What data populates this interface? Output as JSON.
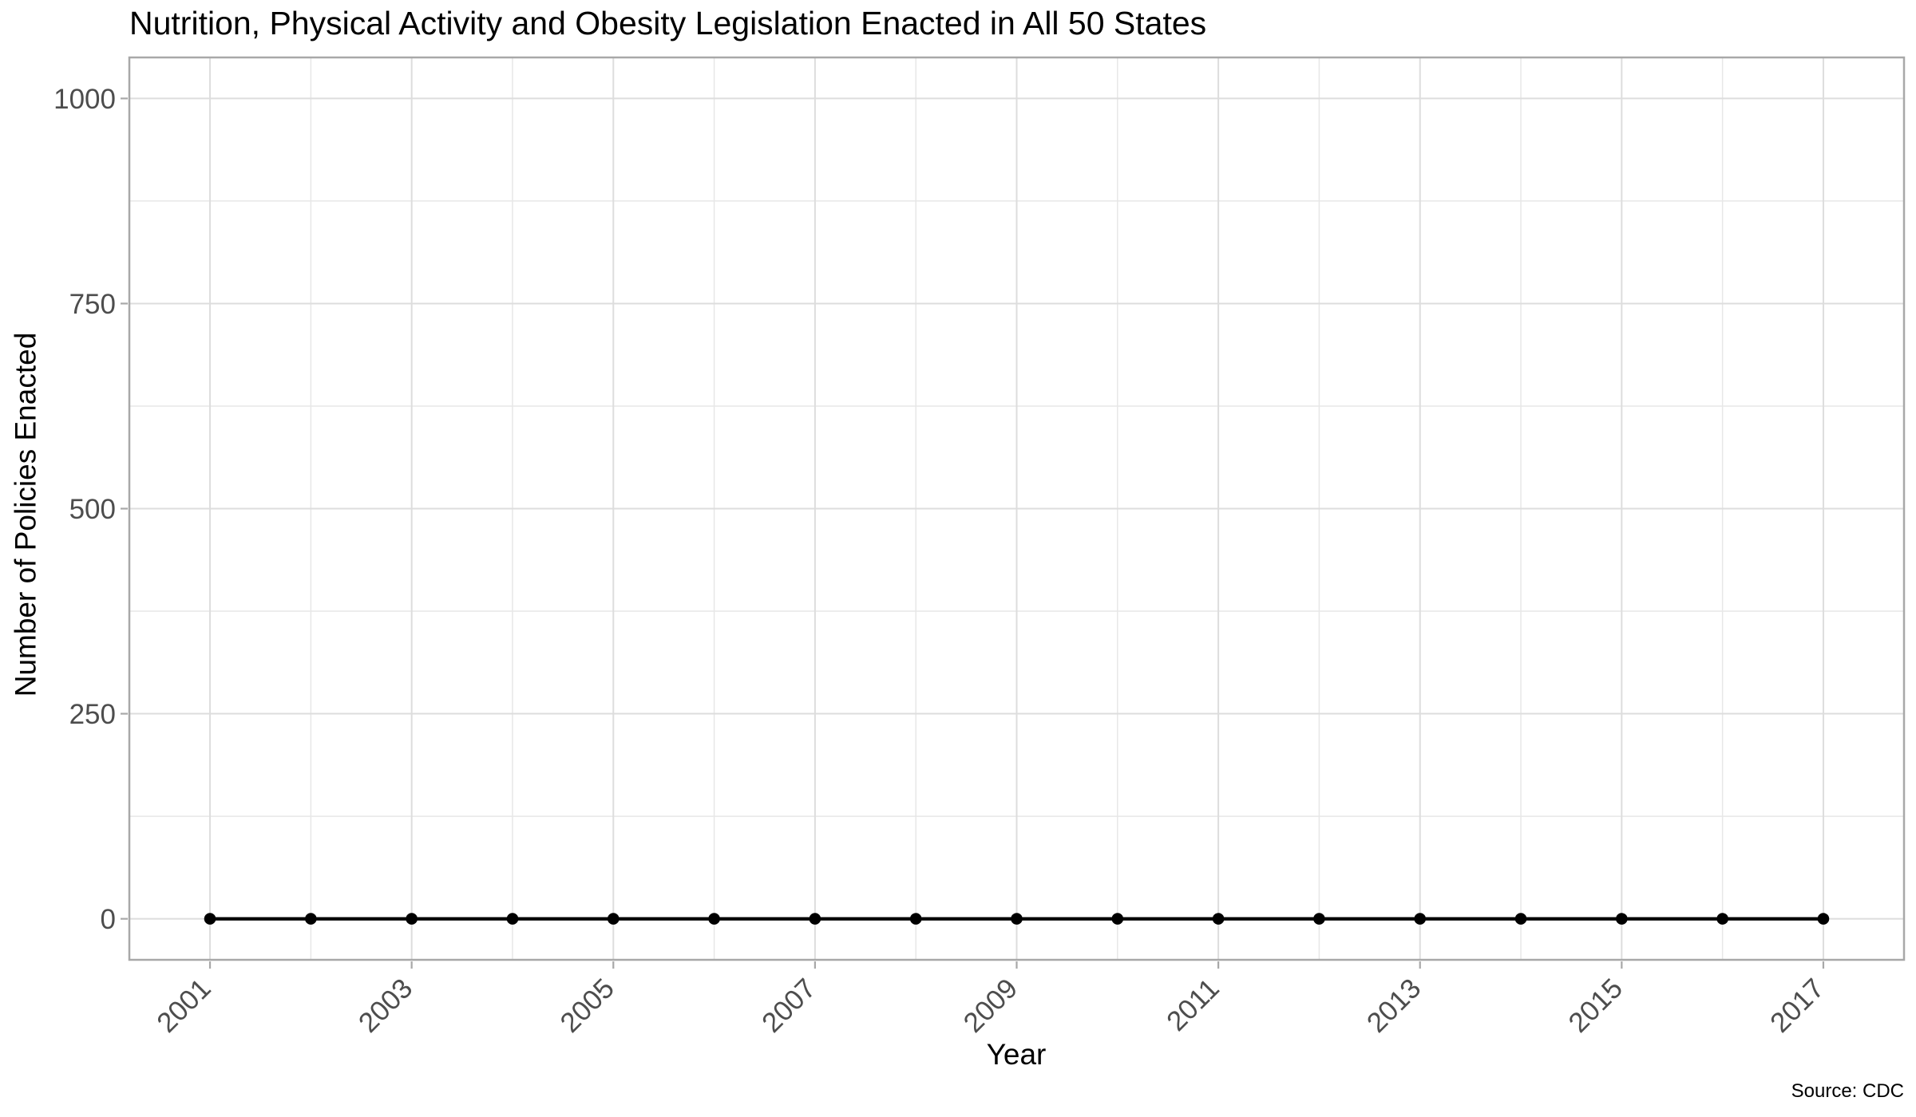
{
  "chart_data": {
    "type": "line",
    "title": "Nutrition, Physical Activity and Obesity Legislation Enacted in All 50 States",
    "xlabel": "Year",
    "ylabel": "Number of Policies Enacted",
    "caption": "Source: CDC",
    "x": [
      2001,
      2002,
      2003,
      2004,
      2005,
      2006,
      2007,
      2008,
      2009,
      2010,
      2011,
      2012,
      2013,
      2014,
      2015,
      2016,
      2017
    ],
    "series": [
      {
        "name": "Number of Policies Enacted",
        "values": [
          0,
          0,
          0,
          0,
          0,
          0,
          0,
          0,
          0,
          0,
          0,
          0,
          0,
          0,
          0,
          0,
          0
        ]
      }
    ],
    "x_ticks": [
      2001,
      2003,
      2005,
      2007,
      2009,
      2011,
      2013,
      2015,
      2017
    ],
    "x_tick_labels": [
      "2001",
      "2003",
      "2005",
      "2007",
      "2009",
      "2011",
      "2013",
      "2015",
      "2017"
    ],
    "x_minor_breaks": [
      2002,
      2004,
      2006,
      2008,
      2010,
      2012,
      2014,
      2016
    ],
    "y_ticks": [
      0,
      250,
      500,
      750,
      1000
    ],
    "y_tick_labels": [
      "0",
      "250",
      "500",
      "750",
      "1000"
    ],
    "y_minor_breaks": [
      125,
      375,
      625,
      875
    ],
    "xlim": [
      2000.2,
      2017.8
    ],
    "ylim": [
      -50,
      1050
    ],
    "x_tick_angle": -45,
    "grid": "major+minor",
    "legend": "none",
    "marker": "point",
    "line_color": "#000000",
    "point_color": "#000000"
  },
  "style": {
    "background": "#ffffff",
    "panel_background": "#ffffff",
    "panel_border_color": "#a8a8a8",
    "grid_major_color": "#dddddd",
    "grid_minor_color": "#e7e7e7",
    "tick_color": "#a8a8a8",
    "axis_text_color": "#4d4d4d",
    "title_color": "#000000",
    "axis_title_color": "#000000",
    "caption_color": "#000000"
  }
}
